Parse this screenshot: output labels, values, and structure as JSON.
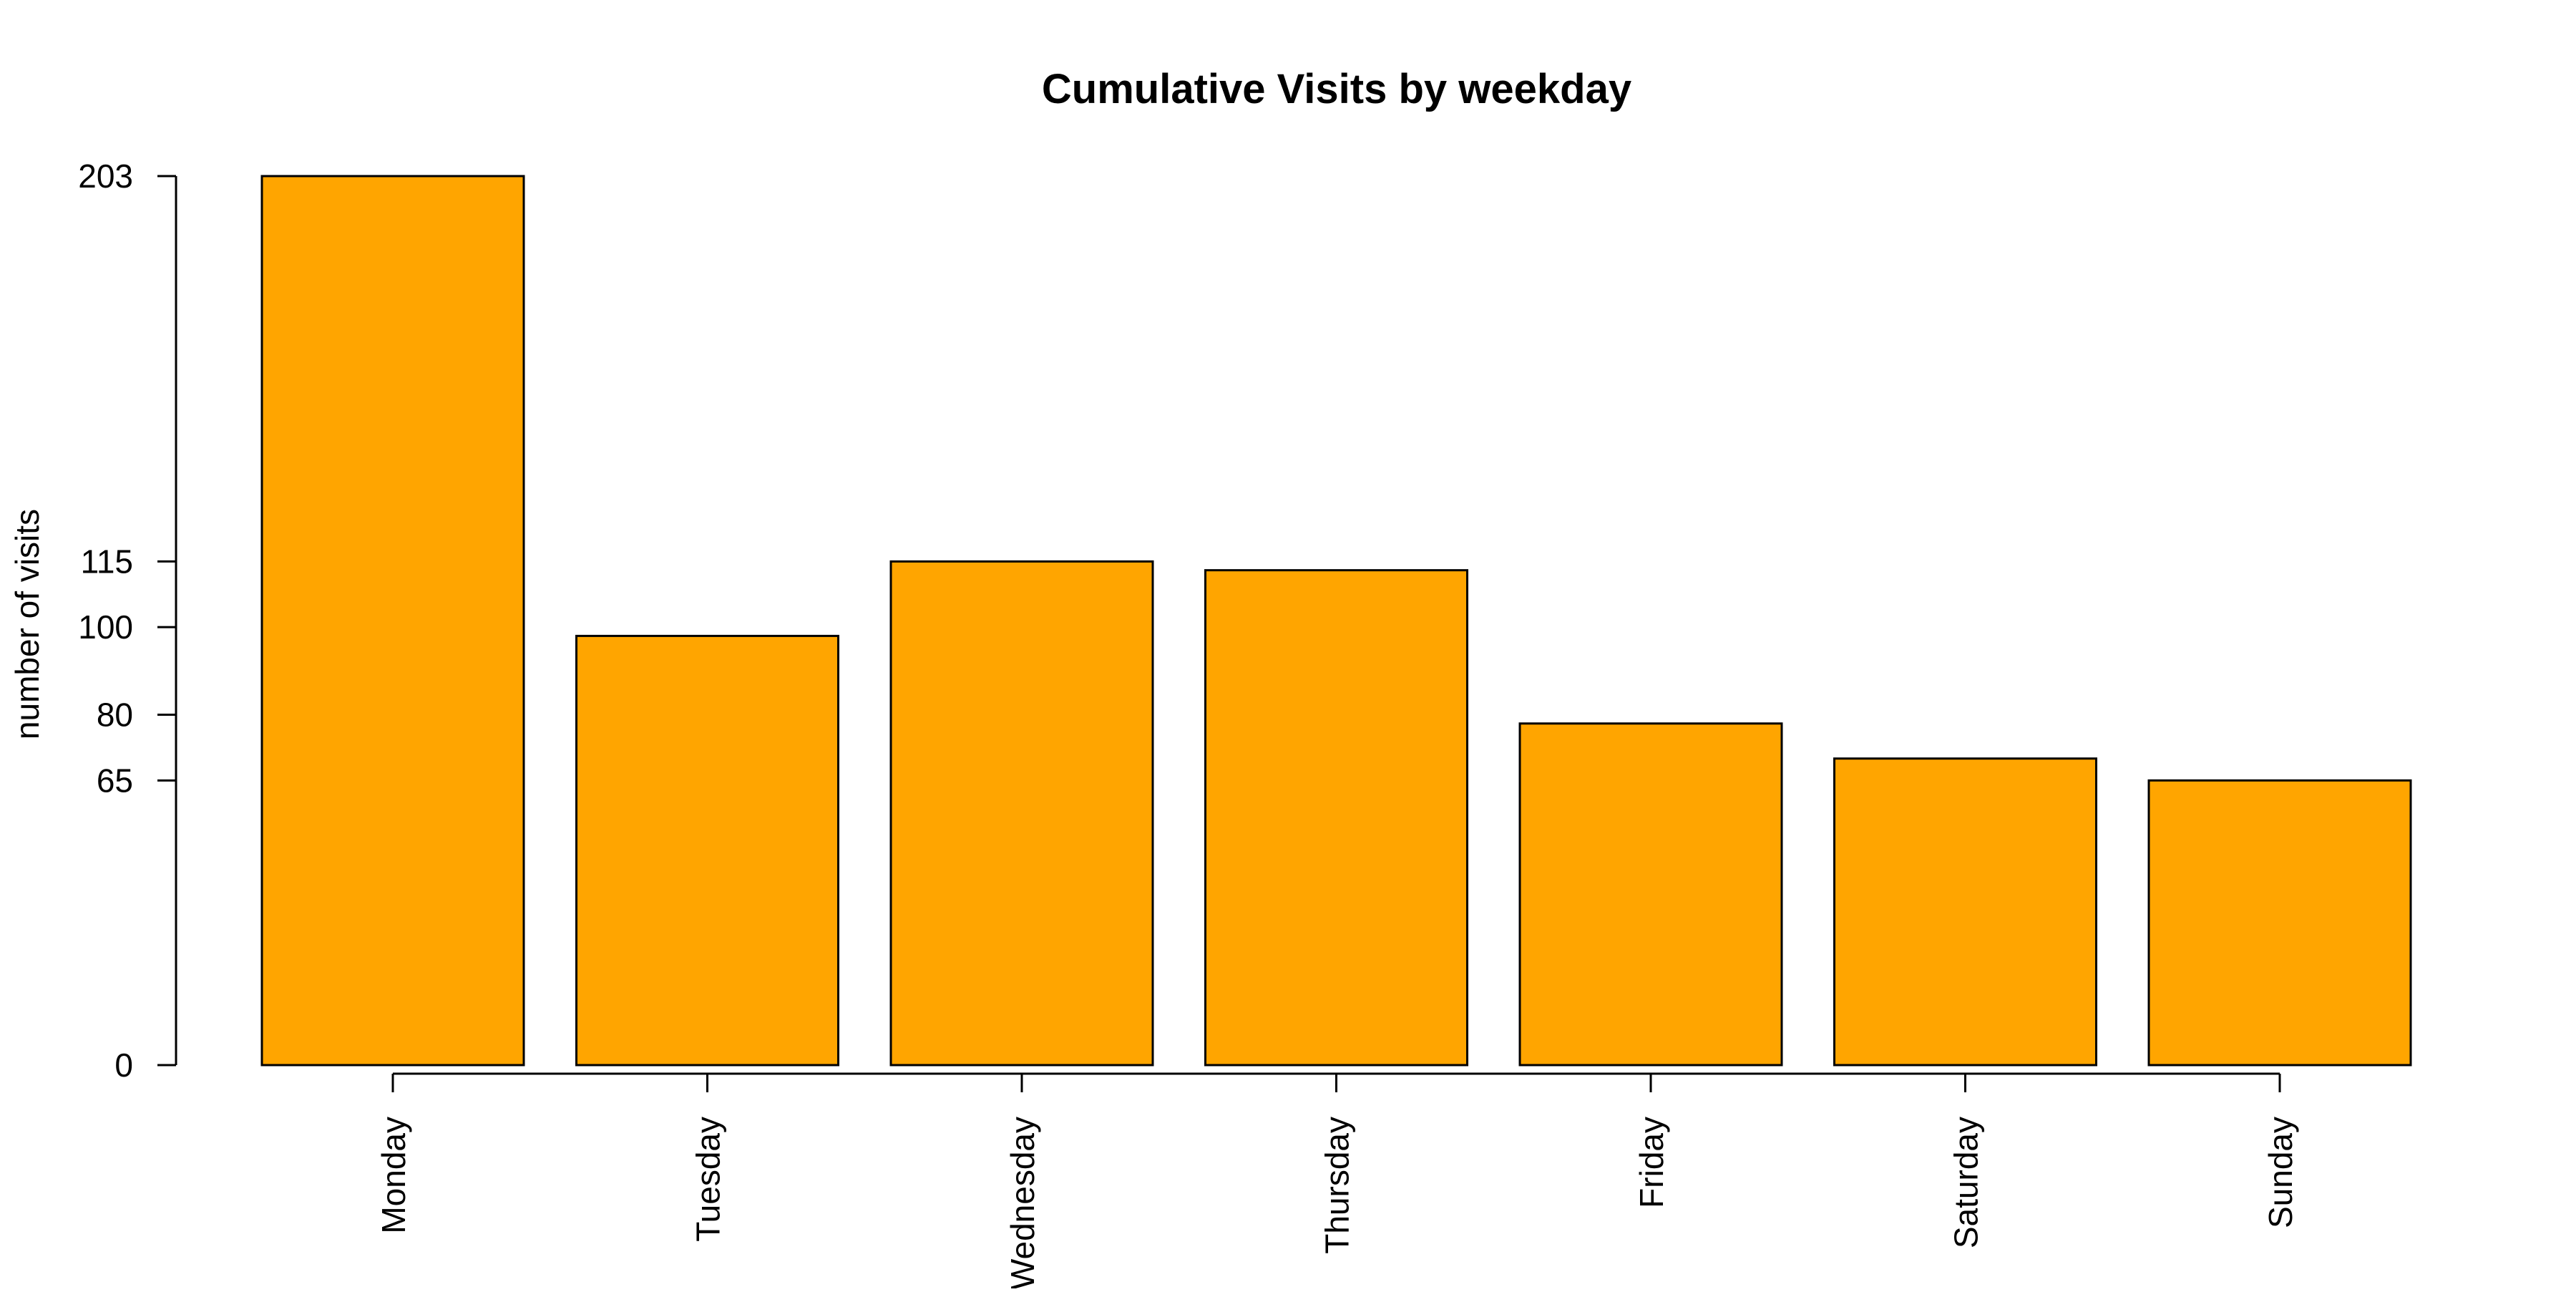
{
  "chart_data": {
    "type": "bar",
    "title": "Cumulative Visits by weekday",
    "xlabel": "",
    "ylabel": "number of visits",
    "categories": [
      "Monday",
      "Tuesday",
      "Wednesday",
      "Thursday",
      "Friday",
      "Saturday",
      "Sunday"
    ],
    "values": [
      203,
      98,
      115,
      113,
      78,
      70,
      65
    ],
    "ylim": [
      0,
      203
    ],
    "yticks": [
      0,
      65,
      80,
      100,
      115,
      203
    ],
    "ytick_labels": [
      "0",
      "65",
      "80",
      "100",
      "115",
      "203"
    ],
    "bar_color": "#FFA500",
    "grid": false,
    "legend": "none"
  }
}
